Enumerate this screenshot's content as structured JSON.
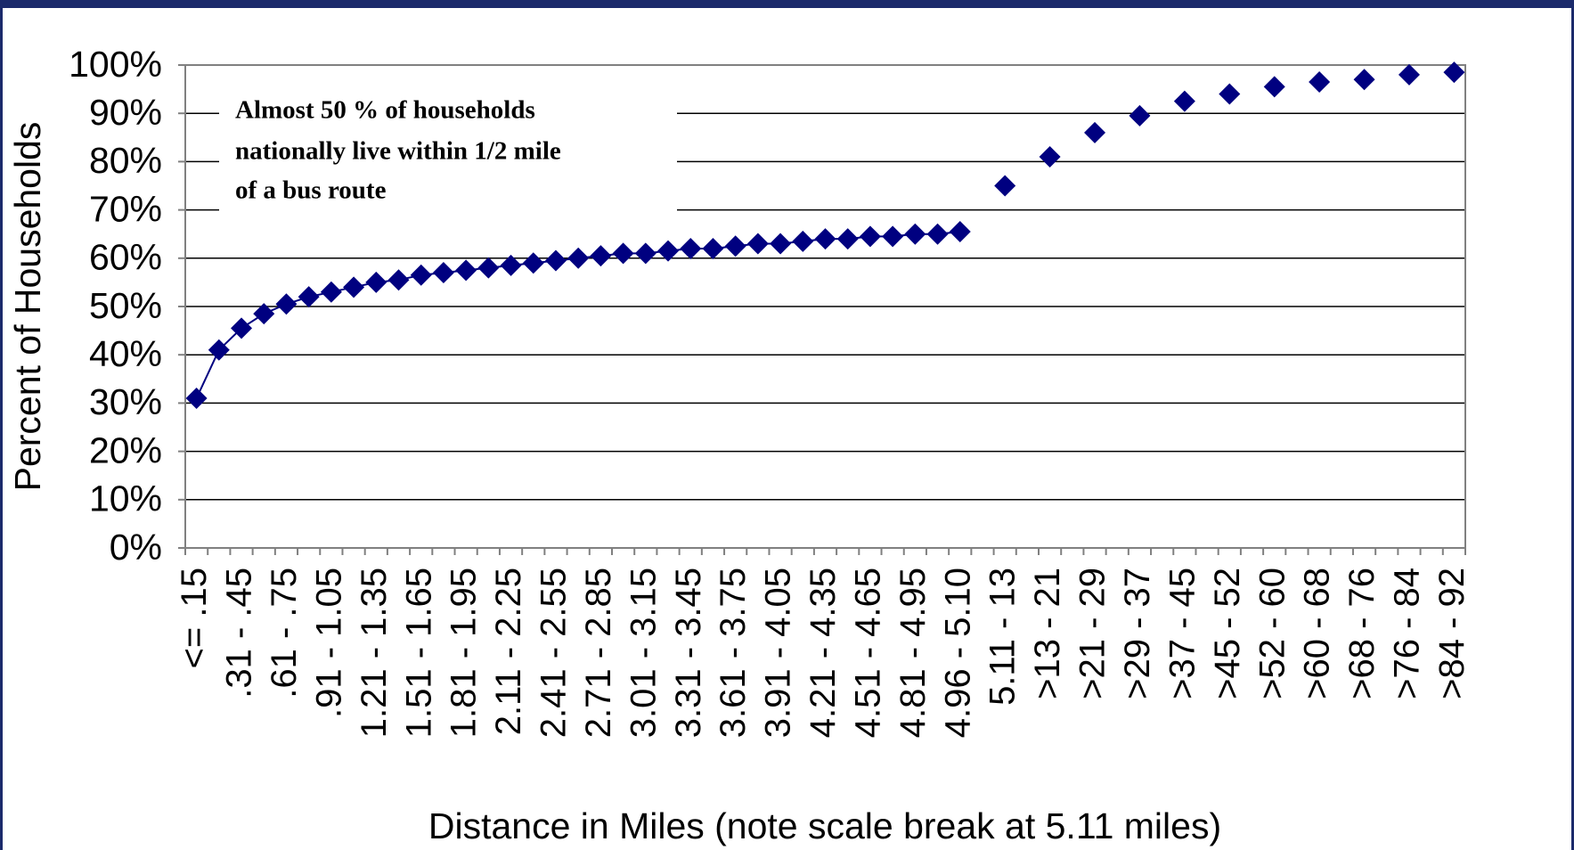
{
  "chart_data": {
    "type": "line",
    "x_label": "Distance in Miles (note scale break at 5.11 miles)",
    "y_label": "Percent of Households",
    "annotation": [
      "Almost 50 % of households",
      "nationally live within 1/2 mile",
      "of a bus route"
    ],
    "categories": [
      "<= .15",
      null,
      ".31 - .45",
      null,
      ".61 - .75",
      null,
      ".91 - 1.05",
      null,
      "1.21 - 1.35",
      null,
      "1.51 - 1.65",
      null,
      "1.81 - 1.95",
      null,
      "2.11 - 2.25",
      null,
      "2.41 - 2.55",
      null,
      "2.71 - 2.85",
      null,
      "3.01 - 3.15",
      null,
      "3.31 - 3.45",
      null,
      "3.61 - 3.75",
      null,
      "3.91 - 4.05",
      null,
      "4.21 - 4.35",
      null,
      "4.51 - 4.65",
      null,
      "4.81 - 4.95",
      null,
      "4.96 - 5.10",
      null,
      "5.11 - 13",
      null,
      ">13 - 21",
      null,
      ">21 - 29",
      null,
      ">29 - 37",
      null,
      ">37 - 45",
      null,
      ">45 - 52",
      null,
      ">52 - 60",
      null,
      ">60 - 68",
      null,
      ">68 - 76",
      null,
      ">76 - 84",
      null,
      ">84 - 92"
    ],
    "series": [
      {
        "name": "Percent of Households",
        "color": "#000080",
        "values": [
          31,
          41,
          45.5,
          48.5,
          50.5,
          52,
          53,
          54,
          55,
          55.5,
          56.5,
          57,
          57.5,
          58,
          58.5,
          59,
          59.5,
          60,
          60.5,
          61,
          61,
          61.5,
          62,
          62,
          62.5,
          63,
          63,
          63.5,
          64,
          64,
          64.5,
          64.5,
          65,
          65,
          65.5,
          null,
          75,
          null,
          81,
          null,
          86,
          null,
          89.5,
          null,
          92.5,
          null,
          94,
          null,
          95.5,
          null,
          96.5,
          null,
          97,
          null,
          98,
          null,
          98.5
        ]
      }
    ],
    "ylim": [
      0,
      100
    ],
    "yticks": [
      {
        "value": 0,
        "label": "0%"
      },
      {
        "value": 10,
        "label": "10%"
      },
      {
        "value": 20,
        "label": "20%"
      },
      {
        "value": 30,
        "label": "30%"
      },
      {
        "value": 40,
        "label": "40%"
      },
      {
        "value": 50,
        "label": "50%"
      },
      {
        "value": 60,
        "label": "60%"
      },
      {
        "value": 70,
        "label": "70%"
      },
      {
        "value": 80,
        "label": "80%"
      },
      {
        "value": 90,
        "label": "90%"
      },
      {
        "value": 100,
        "label": "100%"
      }
    ],
    "grid": true
  }
}
